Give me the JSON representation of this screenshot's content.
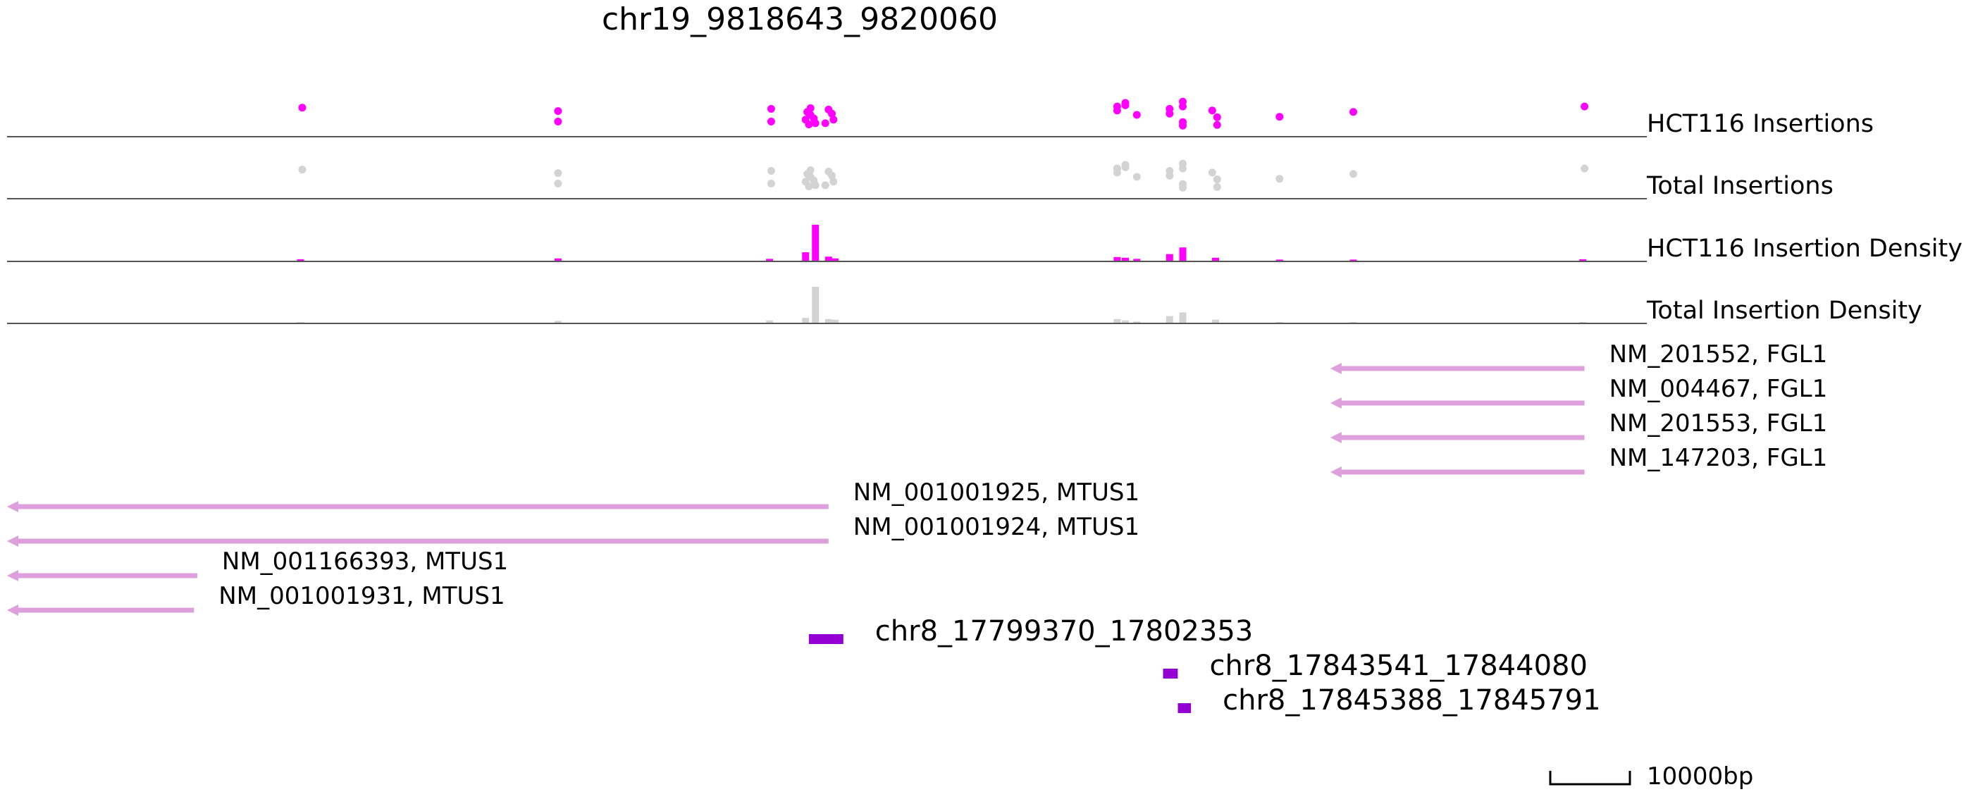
{
  "title": "chr19_9818643_9820060",
  "colors": {
    "hct116": "#ff00ff",
    "total": "#d3d3d3",
    "gene": "#dda0dd",
    "peak": "#9400d3",
    "baseline": "#555555",
    "text": "#000000"
  },
  "tracks": [
    {
      "id": "hct116-insertions",
      "label": "HCT116 Insertions",
      "kind": "scatter",
      "color_key": "hct116"
    },
    {
      "id": "total-insertions",
      "label": "Total Insertions",
      "kind": "scatter",
      "color_key": "total"
    },
    {
      "id": "hct116-density",
      "label": "HCT116 Insertion Density",
      "kind": "density",
      "color_key": "hct116"
    },
    {
      "id": "total-density",
      "label": "Total Insertion Density",
      "kind": "density",
      "color_key": "total"
    }
  ],
  "insertions": [
    {
      "pos": 0.18,
      "level": 0.8
    },
    {
      "pos": 0.336,
      "level": 0.66
    },
    {
      "pos": 0.336,
      "level": 0.22
    },
    {
      "pos": 0.466,
      "level": 0.75
    },
    {
      "pos": 0.466,
      "level": 0.22
    },
    {
      "pos": 0.49,
      "level": 0.78
    },
    {
      "pos": 0.49,
      "level": 0.5
    },
    {
      "pos": 0.487,
      "level": 0.3
    },
    {
      "pos": 0.493,
      "level": 0.15
    },
    {
      "pos": 0.488,
      "level": 0.62
    },
    {
      "pos": 0.492,
      "level": 0.35
    },
    {
      "pos": 0.489,
      "level": 0.1
    },
    {
      "pos": 0.501,
      "level": 0.72
    },
    {
      "pos": 0.503,
      "level": 0.55
    },
    {
      "pos": 0.504,
      "level": 0.3
    },
    {
      "pos": 0.499,
      "level": 0.15
    },
    {
      "pos": 0.677,
      "level": 0.85
    },
    {
      "pos": 0.677,
      "level": 0.68
    },
    {
      "pos": 0.682,
      "level": 0.9
    },
    {
      "pos": 0.682,
      "level": 1.0
    },
    {
      "pos": 0.689,
      "level": 0.5
    },
    {
      "pos": 0.709,
      "level": 0.75
    },
    {
      "pos": 0.709,
      "level": 0.55
    },
    {
      "pos": 0.717,
      "level": 1.05
    },
    {
      "pos": 0.717,
      "level": 0.85
    },
    {
      "pos": 0.717,
      "level": 0.2
    },
    {
      "pos": 0.717,
      "level": 0.05
    },
    {
      "pos": 0.735,
      "level": 0.68
    },
    {
      "pos": 0.738,
      "level": 0.4
    },
    {
      "pos": 0.738,
      "level": 0.08
    },
    {
      "pos": 0.776,
      "level": 0.42
    },
    {
      "pos": 0.821,
      "level": 0.62
    },
    {
      "pos": 0.962,
      "level": 0.85
    }
  ],
  "density": {
    "hct116": [
      {
        "pos": 0.179,
        "h": 0.06
      },
      {
        "pos": 0.336,
        "h": 0.08
      },
      {
        "pos": 0.465,
        "h": 0.07
      },
      {
        "pos": 0.487,
        "h": 0.25
      },
      {
        "pos": 0.493,
        "h": 1.0
      },
      {
        "pos": 0.501,
        "h": 0.13
      },
      {
        "pos": 0.505,
        "h": 0.08
      },
      {
        "pos": 0.677,
        "h": 0.12
      },
      {
        "pos": 0.682,
        "h": 0.1
      },
      {
        "pos": 0.689,
        "h": 0.07
      },
      {
        "pos": 0.709,
        "h": 0.2
      },
      {
        "pos": 0.717,
        "h": 0.38
      },
      {
        "pos": 0.737,
        "h": 0.1
      },
      {
        "pos": 0.776,
        "h": 0.05
      },
      {
        "pos": 0.821,
        "h": 0.05
      },
      {
        "pos": 0.961,
        "h": 0.06
      }
    ],
    "total": [
      {
        "pos": 0.179,
        "h": 0.03
      },
      {
        "pos": 0.336,
        "h": 0.07
      },
      {
        "pos": 0.465,
        "h": 0.08
      },
      {
        "pos": 0.487,
        "h": 0.15
      },
      {
        "pos": 0.493,
        "h": 1.0
      },
      {
        "pos": 0.501,
        "h": 0.12
      },
      {
        "pos": 0.505,
        "h": 0.1
      },
      {
        "pos": 0.677,
        "h": 0.12
      },
      {
        "pos": 0.682,
        "h": 0.08
      },
      {
        "pos": 0.689,
        "h": 0.05
      },
      {
        "pos": 0.709,
        "h": 0.2
      },
      {
        "pos": 0.717,
        "h": 0.3
      },
      {
        "pos": 0.737,
        "h": 0.1
      },
      {
        "pos": 0.776,
        "h": 0.03
      },
      {
        "pos": 0.821,
        "h": 0.03
      },
      {
        "pos": 0.961,
        "h": 0.03
      }
    ]
  },
  "genes": [
    {
      "label": "NM_201552, FGL1",
      "start": 0.807,
      "end": 0.962,
      "strand": "-"
    },
    {
      "label": "NM_004467, FGL1",
      "start": 0.807,
      "end": 0.962,
      "strand": "-"
    },
    {
      "label": "NM_201553, FGL1",
      "start": 0.807,
      "end": 0.962,
      "strand": "-"
    },
    {
      "label": "NM_147203, FGL1",
      "start": 0.807,
      "end": 0.962,
      "strand": "-"
    },
    {
      "label": "NM_001001925, MTUS1",
      "start": 0.0,
      "end": 0.501,
      "strand": "-"
    },
    {
      "label": "NM_001001924, MTUS1",
      "start": 0.0,
      "end": 0.501,
      "strand": "-"
    },
    {
      "label": "NM_001166393, MTUS1",
      "start": 0.0,
      "end": 0.116,
      "strand": "-"
    },
    {
      "label": "NM_001001931, MTUS1",
      "start": 0.0,
      "end": 0.114,
      "strand": "-"
    }
  ],
  "peaks": [
    {
      "label": "chr8_17799370_17802353",
      "start": 0.489,
      "end": 0.51
    },
    {
      "label": "chr8_17843541_17844080",
      "start": 0.705,
      "end": 0.714
    },
    {
      "label": "chr8_17845388_17845791",
      "start": 0.714,
      "end": 0.722
    }
  ],
  "scale_bar": {
    "label": "10000bp"
  }
}
